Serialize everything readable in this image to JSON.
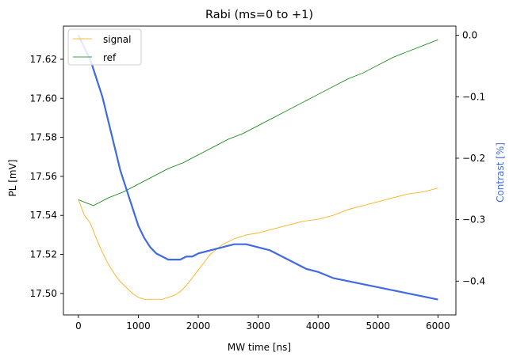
{
  "chart_data": {
    "type": "line",
    "title": "Rabi (ms=0 to +1)",
    "xlabel": "MW time [ns]",
    "ylabel_left": "PL [mV]",
    "ylabel_right": "Contrast [%]",
    "xlim": [
      -250,
      6300
    ],
    "ylim_left": [
      17.489,
      17.637
    ],
    "ylim_right": [
      -0.455,
      0.015
    ],
    "x_ticks": [
      0,
      1000,
      2000,
      3000,
      4000,
      5000,
      6000
    ],
    "y_left_ticks": [
      "17.50",
      "17.52",
      "17.54",
      "17.56",
      "17.58",
      "17.60",
      "17.62"
    ],
    "y_right_ticks": [
      "0.0",
      "−0.1",
      "−0.2",
      "−0.3",
      "−0.4"
    ],
    "legend_position": "upper-left",
    "grid": false,
    "series": [
      {
        "name": "signal",
        "axis": "left",
        "color": "#FFA500",
        "x": [
          0,
          100,
          200,
          300,
          400,
          500,
          600,
          700,
          800,
          900,
          1000,
          1100,
          1200,
          1300,
          1400,
          1500,
          1600,
          1700,
          1800,
          1900,
          2000,
          2200,
          2400,
          2600,
          2800,
          3000,
          3250,
          3500,
          3750,
          4000,
          4250,
          4500,
          4750,
          5000,
          5250,
          5500,
          5750,
          6000
        ],
        "y": [
          17.548,
          17.54,
          17.536,
          17.528,
          17.521,
          17.515,
          17.51,
          17.506,
          17.503,
          17.5,
          17.498,
          17.497,
          17.497,
          17.497,
          17.497,
          17.498,
          17.499,
          17.501,
          17.504,
          17.508,
          17.512,
          17.52,
          17.525,
          17.528,
          17.53,
          17.531,
          17.533,
          17.535,
          17.537,
          17.538,
          17.54,
          17.543,
          17.545,
          17.547,
          17.549,
          17.551,
          17.552,
          17.554
        ]
      },
      {
        "name": "ref",
        "axis": "left",
        "color": "#008000",
        "x": [
          0,
          250,
          500,
          750,
          1000,
          1250,
          1500,
          1750,
          2000,
          2250,
          2500,
          2750,
          3000,
          3250,
          3500,
          3750,
          4000,
          4250,
          4500,
          4750,
          5000,
          5250,
          5500,
          5750,
          6000
        ],
        "y": [
          17.548,
          17.545,
          17.549,
          17.552,
          17.556,
          17.56,
          17.564,
          17.567,
          17.571,
          17.575,
          17.579,
          17.582,
          17.586,
          17.59,
          17.594,
          17.598,
          17.602,
          17.606,
          17.61,
          17.613,
          17.617,
          17.621,
          17.624,
          17.627,
          17.63
        ]
      },
      {
        "name": "Contrast",
        "axis": "right",
        "color": "#4169E1",
        "x": [
          0,
          100,
          200,
          300,
          400,
          500,
          600,
          700,
          800,
          900,
          1000,
          1100,
          1200,
          1300,
          1400,
          1500,
          1600,
          1700,
          1800,
          1900,
          2000,
          2200,
          2400,
          2600,
          2800,
          3000,
          3200,
          3400,
          3600,
          3800,
          4000,
          4250,
          4500,
          4750,
          5000,
          5250,
          5500,
          5750,
          6000
        ],
        "y": [
          0.0,
          -0.02,
          -0.04,
          -0.07,
          -0.1,
          -0.14,
          -0.18,
          -0.22,
          -0.25,
          -0.28,
          -0.31,
          -0.33,
          -0.345,
          -0.355,
          -0.36,
          -0.365,
          -0.365,
          -0.365,
          -0.36,
          -0.36,
          -0.355,
          -0.35,
          -0.345,
          -0.34,
          -0.34,
          -0.345,
          -0.35,
          -0.36,
          -0.37,
          -0.38,
          -0.385,
          -0.395,
          -0.4,
          -0.405,
          -0.41,
          -0.415,
          -0.42,
          -0.425,
          -0.43
        ]
      }
    ]
  }
}
